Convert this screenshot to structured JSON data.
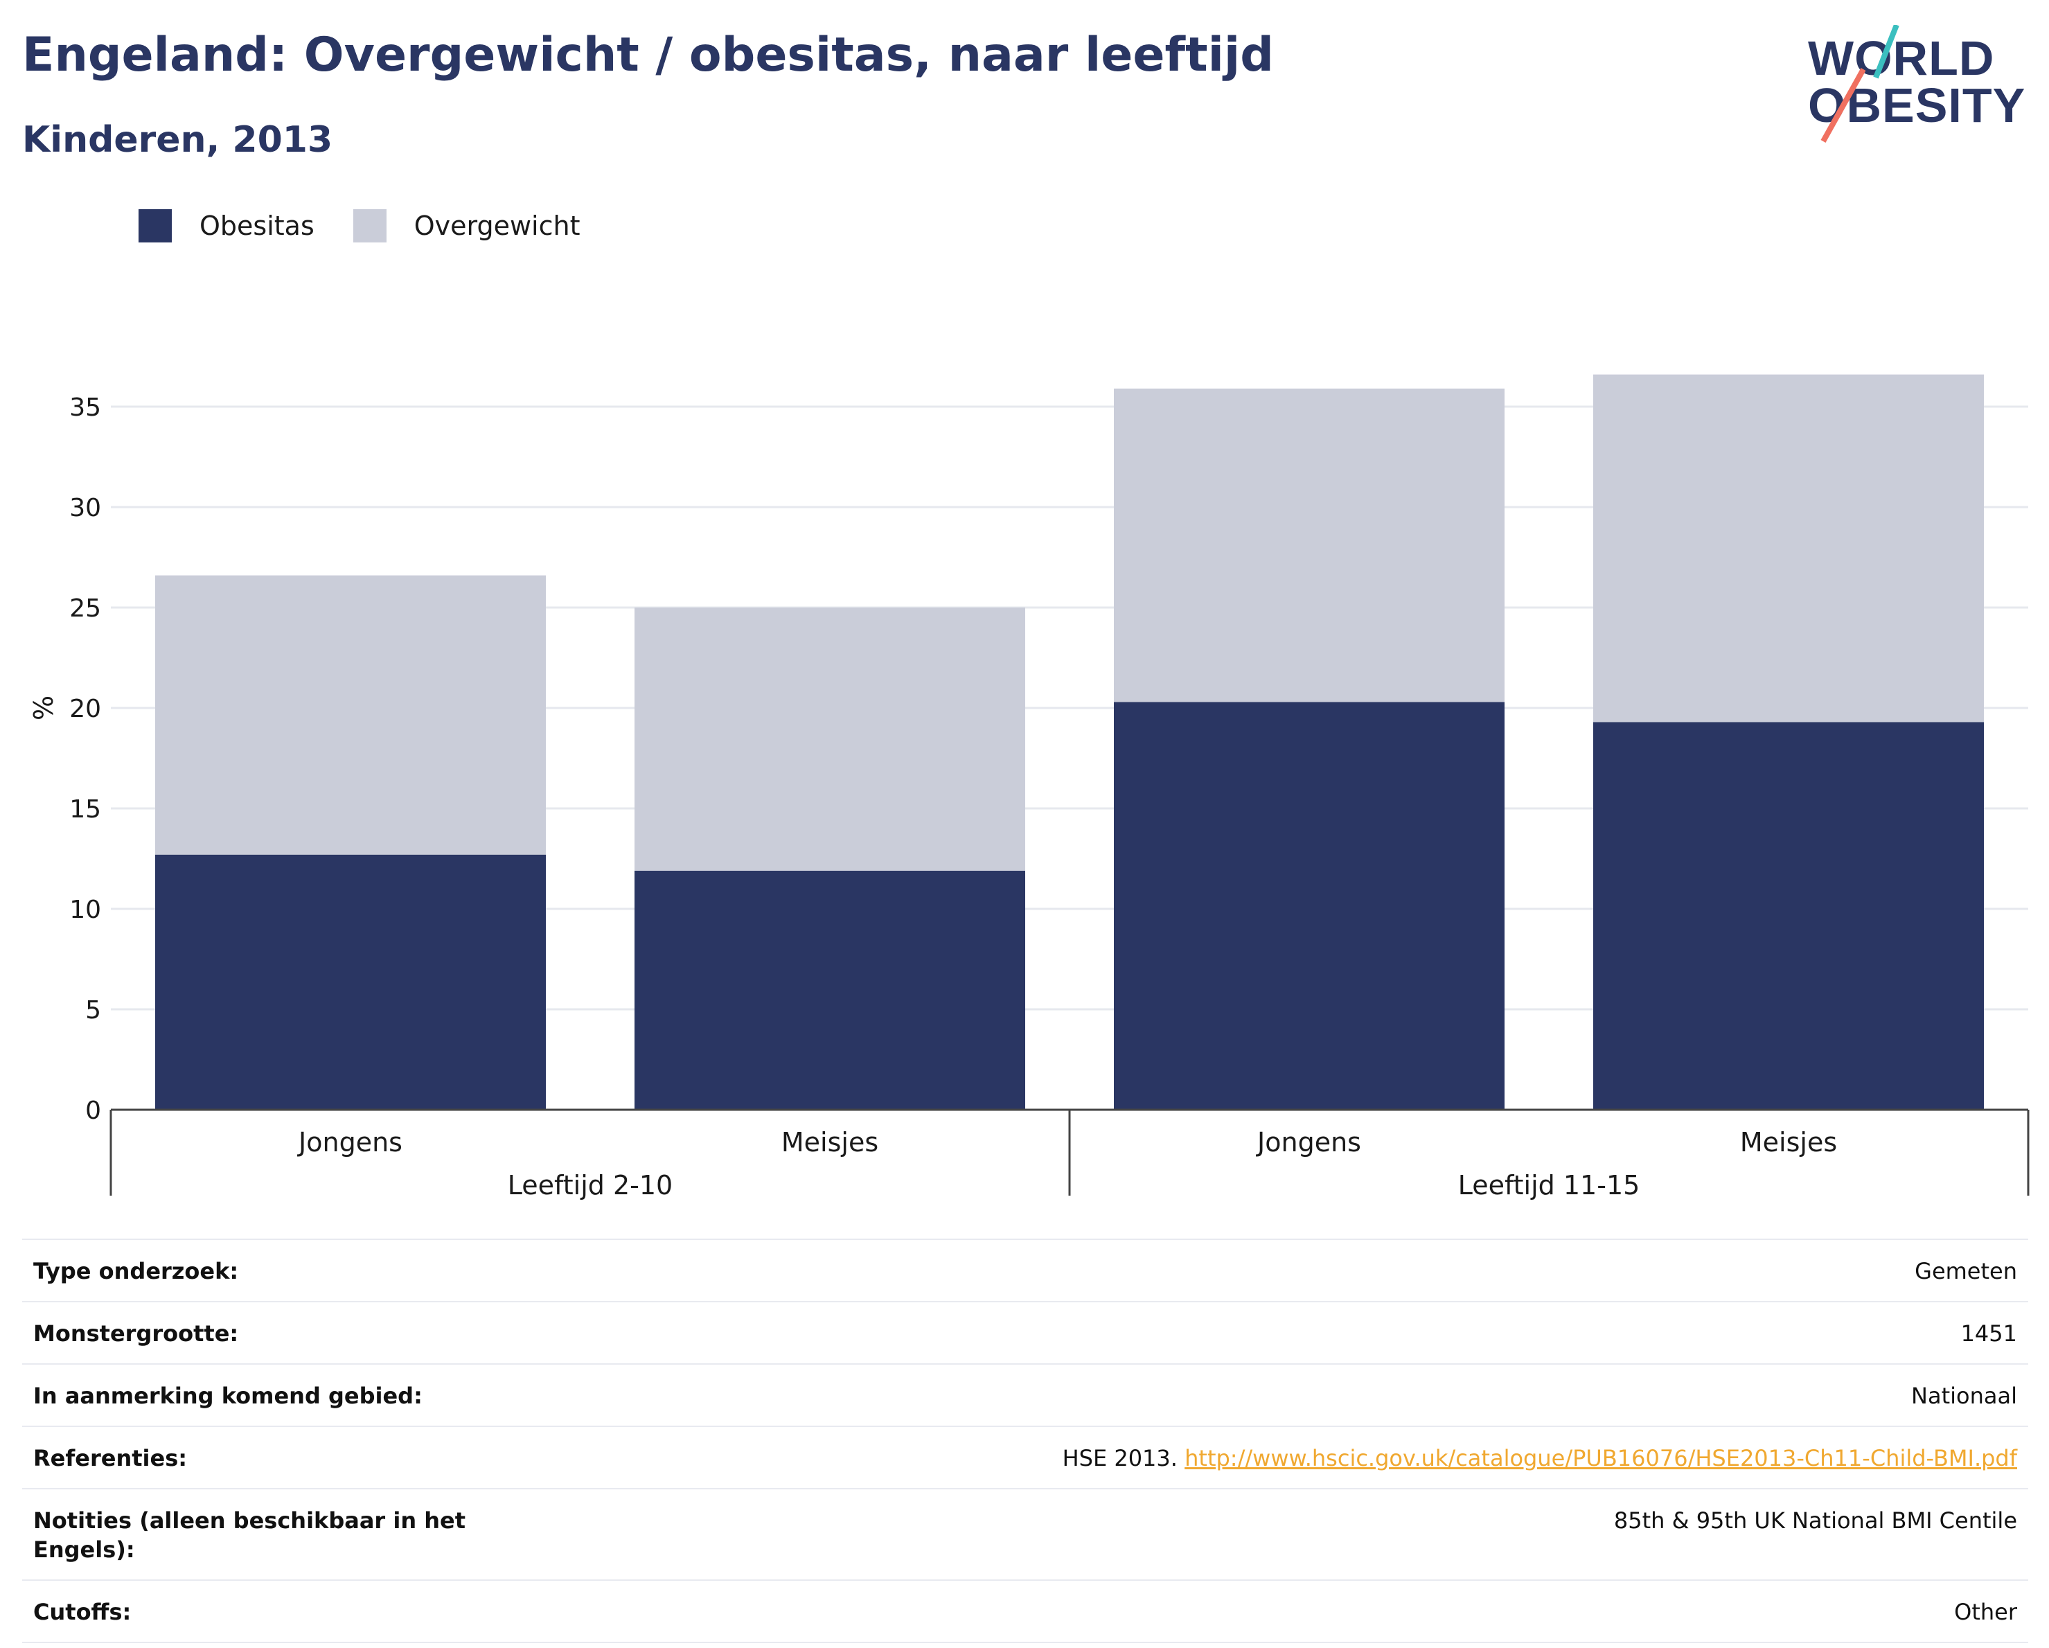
{
  "header": {
    "title": "Engeland: Overgewicht / obesitas, naar leeftijd",
    "subtitle": "Kinderen, 2013"
  },
  "logo": {
    "line1": "WORLD",
    "line2": "OBESITY",
    "colors": {
      "text": "#2a3663",
      "accent_teal": "#3bbfbf",
      "accent_coral": "#f07060"
    }
  },
  "legend": [
    {
      "label": "Obesitas",
      "color": "#2a3663"
    },
    {
      "label": "Overgewicht",
      "color": "#cacdd9"
    }
  ],
  "chart_data": {
    "type": "bar",
    "stacked": true,
    "ylabel": "%",
    "ylim": [
      0,
      35
    ],
    "yticks": [
      0,
      5,
      10,
      15,
      20,
      25,
      30,
      35
    ],
    "grid": true,
    "legend_position": "top-left",
    "groups": [
      {
        "label": "Leeftijd 2-10",
        "categories": [
          "Jongens",
          "Meisjes"
        ]
      },
      {
        "label": "Leeftijd 11-15",
        "categories": [
          "Jongens",
          "Meisjes"
        ]
      }
    ],
    "categories": [
      "Jongens",
      "Meisjes",
      "Jongens",
      "Meisjes"
    ],
    "series": [
      {
        "name": "Obesitas",
        "color": "#2a3663",
        "values": [
          12.7,
          11.9,
          20.3,
          19.3
        ]
      },
      {
        "name": "Overgewicht",
        "color": "#cacdd9",
        "values": [
          13.9,
          13.1,
          15.6,
          17.3
        ]
      }
    ]
  },
  "info_table": {
    "rows": [
      {
        "label": "Type onderzoek:",
        "value": "Gemeten"
      },
      {
        "label": "Monstergrootte:",
        "value": "1451"
      },
      {
        "label": "In aanmerking komend gebied:",
        "value": "Nationaal"
      },
      {
        "label": "Referenties:",
        "value": "HSE 2013.",
        "link": "http://www.hscic.gov.uk/catalogue/PUB16076/HSE2013-Ch11-Child-BMI.pdf"
      },
      {
        "label": "Notities (alleen beschikbaar in het Engels):",
        "value": "85th & 95th UK National BMI Centile"
      },
      {
        "label": "Cutoffs:",
        "value": "Other"
      }
    ]
  }
}
